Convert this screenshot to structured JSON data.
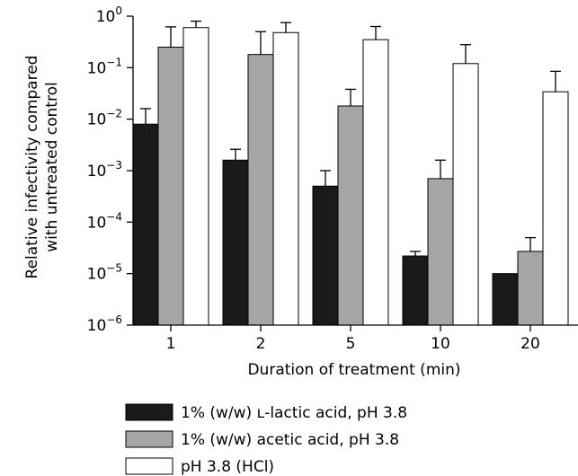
{
  "chart_data": {
    "type": "bar",
    "scale": "log",
    "ylim": [
      1e-06,
      1
    ],
    "y_ticks": [
      {
        "value": 1,
        "base": "10",
        "exp": "0"
      },
      {
        "value": 0.1,
        "base": "10",
        "exp": "−1"
      },
      {
        "value": 0.01,
        "base": "10",
        "exp": "−2"
      },
      {
        "value": 0.001,
        "base": "10",
        "exp": "−3"
      },
      {
        "value": 0.0001,
        "base": "10",
        "exp": "−4"
      },
      {
        "value": 1e-05,
        "base": "10",
        "exp": "−5"
      },
      {
        "value": 1e-06,
        "base": "10",
        "exp": "−6"
      }
    ],
    "ylabel_lines": [
      "Relative infectivity compared",
      "with untreated control"
    ],
    "xlabel": "Duration of treatment (min)",
    "categories": [
      "1",
      "2",
      "5",
      "10",
      "20"
    ],
    "legend_placement": "bottom",
    "series": [
      {
        "name": "1% (w/w) ʟ-lactic acid, pH 3.8",
        "color": "#1a1a1a",
        "values": [
          0.008,
          0.0016,
          0.0005,
          2.2e-05,
          1e-05
        ],
        "error_upper": [
          0.016,
          0.0026,
          0.001,
          2.7e-05,
          null
        ]
      },
      {
        "name": "1% (w/w) acetic acid, pH 3.8",
        "color": "#a6a6a6",
        "values": [
          0.25,
          0.18,
          0.018,
          0.0007,
          2.7e-05
        ],
        "error_upper": [
          0.62,
          0.5,
          0.038,
          0.0016,
          5e-05
        ]
      },
      {
        "name": "pH 3.8 (HCl)",
        "color": "#ffffff",
        "values": [
          0.6,
          0.48,
          0.35,
          0.12,
          0.034
        ],
        "error_upper": [
          0.8,
          0.75,
          0.63,
          0.28,
          0.085
        ]
      }
    ]
  }
}
